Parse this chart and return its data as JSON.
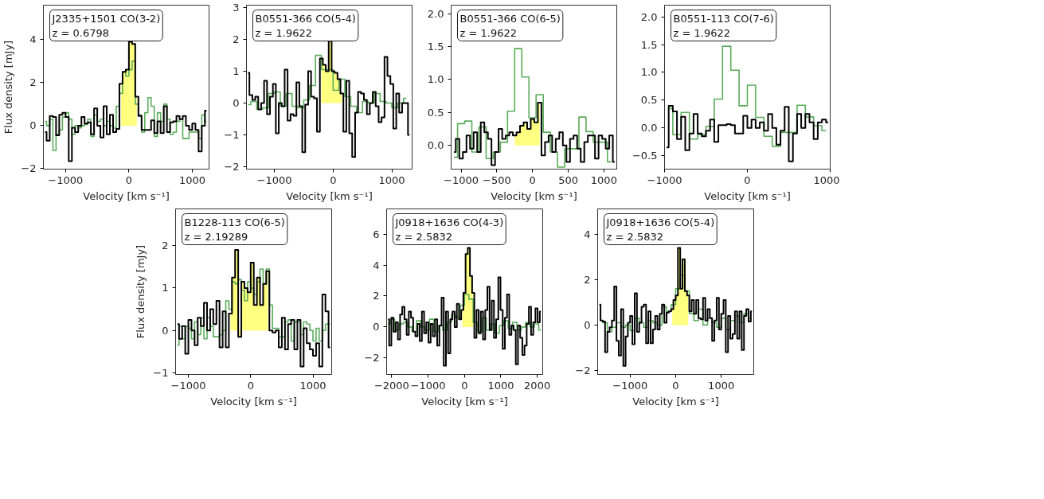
{
  "chart_data": [
    {
      "type": "step",
      "annotations": [
        "J2335+1501 CO(3-2)",
        "z = 0.6798"
      ],
      "xlabel": "Velocity [km s⁻¹]",
      "ylabel": "Flux density [mJy]",
      "xlim": [
        -1350,
        1265
      ],
      "ylim": [
        -2.02,
        5.6
      ],
      "xticks": [
        {
          "value": -1000,
          "label": "−1000"
        },
        0,
        1000
      ],
      "yticks": [
        {
          "value": -2,
          "label": "−2"
        },
        0,
        2,
        4
      ],
      "series": [
        {
          "type": "area",
          "color": "#ffff80",
          "x": [
            -125,
            -75,
            -25,
            25,
            75,
            125
          ],
          "values": [
            1.95,
            2.5,
            2.6,
            3.9,
            3.8,
            1.35
          ]
        },
        {
          "color": "#5aac5a",
          "x": [
            -1325,
            -1275,
            -1225,
            -1175,
            -1125,
            -1075,
            -1025,
            -975,
            -925,
            -875,
            -825,
            -775,
            -725,
            -675,
            -625,
            -575,
            -525,
            -475,
            -425,
            -375,
            -325,
            -275,
            -225,
            -175,
            -125,
            -75,
            -25,
            25,
            75,
            125,
            175,
            225,
            275,
            325,
            375,
            425,
            475,
            525,
            575,
            625,
            675,
            725,
            775,
            825,
            875,
            925,
            975,
            1025,
            1075,
            1125,
            1175,
            1225
          ],
          "values": [
            0.2,
            0.0,
            0.3,
            -1.15,
            -0.4,
            -0.2,
            0.4,
            0.6,
            0.3,
            -0.4,
            0.0,
            -0.1,
            0.0,
            0.05,
            0.3,
            -0.5,
            0.5,
            0.2,
            0.3,
            0.0,
            0.2,
            0.0,
            -0.1,
            0.9,
            1.5,
            2.5,
            2.3,
            2.6,
            3.0,
            1.0,
            0.5,
            -0.3,
            0.6,
            1.3,
            0.9,
            -0.5,
            0.6,
            0.2,
            1.0,
            0.3,
            -0.4,
            -0.3,
            0.2,
            0.3,
            -0.6,
            -0.6,
            -0.3,
            -0.3,
            -0.3,
            -0.6,
            0.5,
            0.2
          ]
        },
        {
          "color": "#000000",
          "x": [
            -1325,
            -1275,
            -1225,
            -1175,
            -1125,
            -1075,
            -1025,
            -975,
            -925,
            -875,
            -825,
            -775,
            -725,
            -675,
            -625,
            -575,
            -525,
            -475,
            -425,
            -375,
            -325,
            -275,
            -225,
            -175,
            -125,
            -75,
            -25,
            25,
            75,
            125,
            175,
            225,
            275,
            325,
            375,
            425,
            475,
            525,
            575,
            625,
            675,
            725,
            775,
            825,
            875,
            925,
            975,
            1025,
            1075,
            1125,
            1175,
            1225
          ],
          "values": [
            -0.3,
            -0.7,
            0.45,
            0.4,
            -0.45,
            0.5,
            0.6,
            0.4,
            -1.65,
            -0.1,
            -0.3,
            0.0,
            0.4,
            0.1,
            0.15,
            -0.4,
            0.8,
            0.0,
            -0.55,
            0.9,
            -0.4,
            0.5,
            -0.3,
            -0.15,
            1.95,
            2.5,
            2.6,
            3.9,
            3.8,
            1.35,
            0.45,
            -0.2,
            -0.2,
            -0.2,
            0.25,
            -0.35,
            0.2,
            -0.35,
            0.9,
            -0.3,
            0.15,
            0.2,
            0.45,
            0.3,
            0.45,
            0.0,
            -0.2,
            0.1,
            -0.2,
            -1.2,
            0.0,
            0.7
          ]
        }
      ]
    },
    {
      "type": "step",
      "annotations": [
        "B0551-366 CO(5-4)",
        "z = 1.9622"
      ],
      "xlabel": "Velocity [km s⁻¹]",
      "xlim": [
        -1475,
        1345
      ],
      "ylim": [
        -2.08,
        3.08
      ],
      "xticks": [
        {
          "value": -1000,
          "label": "−1000"
        },
        0,
        1000
      ],
      "yticks": [
        {
          "value": -2,
          "label": "−2"
        },
        {
          "value": -1,
          "label": "−1"
        },
        0,
        1,
        2,
        3
      ],
      "series": [
        {
          "type": "area",
          "color": "#ffff80",
          "x": [
            -200,
            -150,
            -100,
            -50,
            0,
            50,
            100,
            150
          ],
          "values": [
            1.4,
            1.2,
            1.0,
            1.95,
            1.0,
            0.95,
            0.75,
            0.3
          ]
        },
        {
          "color": "#5aac5a",
          "x": [
            -1450,
            -1350,
            -1250,
            -1150,
            -1050,
            -950,
            -850,
            -750,
            -650,
            -550,
            -450,
            -350,
            -250,
            -150,
            -50,
            50,
            150,
            250,
            350,
            450,
            550,
            650,
            750,
            850,
            950,
            1050,
            1150,
            1250
          ],
          "values": [
            -0.05,
            0.05,
            -0.2,
            -0.15,
            0.3,
            0.35,
            -0.1,
            0.3,
            -0.1,
            -0.15,
            0.1,
            0.55,
            1.5,
            1.05,
            1.05,
            0.4,
            0.75,
            0.2,
            -0.1,
            -0.3,
            0.05,
            0.0,
            0.3,
            0.05,
            0.0,
            -0.15,
            0.0,
            0.15
          ]
        },
        {
          "color": "#000000",
          "x": [
            -1450,
            -1400,
            -1350,
            -1300,
            -1250,
            -1200,
            -1150,
            -1100,
            -1050,
            -1000,
            -950,
            -900,
            -850,
            -800,
            -750,
            -700,
            -650,
            -600,
            -550,
            -500,
            -450,
            -400,
            -350,
            -300,
            -250,
            -200,
            -150,
            -100,
            -50,
            0,
            50,
            100,
            150,
            200,
            250,
            300,
            350,
            400,
            450,
            500,
            550,
            600,
            650,
            700,
            750,
            800,
            850,
            900,
            950,
            1000,
            1050,
            1100,
            1150,
            1200,
            1250,
            1300
          ],
          "values": [
            0.95,
            0.25,
            0.1,
            0.2,
            -0.2,
            0.0,
            0.7,
            -0.35,
            0.2,
            0.6,
            -0.95,
            0.0,
            -0.1,
            1.05,
            -0.55,
            -0.35,
            -0.4,
            0.65,
            -0.1,
            -1.55,
            -0.05,
            1.0,
            0.2,
            0.15,
            -0.9,
            1.4,
            1.2,
            1.0,
            1.95,
            1.0,
            0.95,
            0.75,
            0.3,
            -0.9,
            0.7,
            -0.95,
            -1.7,
            -0.3,
            0.35,
            0.3,
            0.1,
            -0.35,
            0.0,
            0.35,
            -0.1,
            -0.6,
            -0.45,
            1.45,
            0.85,
            0.6,
            -0.8,
            0.3,
            -0.3,
            0.0,
            0.0,
            -1.0
          ]
        }
      ]
    },
    {
      "type": "step",
      "annotations": [
        "B0551-366 CO(6-5)",
        "z = 1.9622"
      ],
      "xlabel": "Velocity [km s⁻¹]",
      "xlim": [
        -1140,
        1180
      ],
      "ylim": [
        -0.36,
        2.13
      ],
      "xticks": [
        {
          "value": -1000,
          "label": "−1000"
        },
        {
          "value": -500,
          "label": "−500"
        },
        0,
        500,
        1000
      ],
      "yticks": [
        {
          "value": 0,
          "label": "0.0"
        },
        0.5,
        {
          "value": 1,
          "label": "1.0"
        },
        1.5,
        {
          "value": 2,
          "label": "2.0"
        }
      ],
      "series": [
        {
          "type": "area",
          "color": "#ffff80",
          "x": [
            -250,
            -200,
            -150,
            -100,
            -50,
            0,
            50,
            100
          ],
          "values": [
            0.15,
            0.2,
            0.3,
            0.35,
            0.25,
            0.4,
            0.35,
            0.65
          ]
        },
        {
          "color": "#5aac5a",
          "x": [
            -1100,
            -1000,
            -900,
            -800,
            -700,
            -600,
            -500,
            -400,
            -300,
            -200,
            -100,
            0,
            100,
            200,
            300,
            400,
            500,
            600,
            700,
            800,
            900,
            1000,
            1100
          ],
          "values": [
            -0.18,
            0.33,
            0.37,
            -0.1,
            0.28,
            -0.2,
            -0.1,
            0.05,
            0.52,
            1.47,
            1.04,
            0.42,
            0.77,
            0.2,
            -0.1,
            -0.33,
            -0.05,
            -0.05,
            0.43,
            0.21,
            0.05,
            0.05,
            -0.25
          ]
        },
        {
          "color": "#000000",
          "x": [
            -1100,
            -1050,
            -1000,
            -950,
            -900,
            -850,
            -800,
            -750,
            -700,
            -650,
            -600,
            -550,
            -500,
            -450,
            -400,
            -350,
            -300,
            -250,
            -200,
            -150,
            -100,
            -50,
            0,
            50,
            100,
            150,
            200,
            250,
            300,
            350,
            400,
            450,
            500,
            550,
            600,
            650,
            700,
            750,
            800,
            850,
            900,
            950,
            1000,
            1050,
            1100,
            1150
          ],
          "values": [
            -0.1,
            0.1,
            -0.2,
            -0.1,
            0.15,
            -0.05,
            0.2,
            -0.1,
            0.35,
            0.2,
            0.1,
            -0.3,
            -0.1,
            0.25,
            0.1,
            0.15,
            0.2,
            0.15,
            0.2,
            0.3,
            0.35,
            0.25,
            0.4,
            0.35,
            0.65,
            -0.15,
            0.05,
            0.15,
            -0.1,
            0.1,
            0.2,
            0.0,
            -0.25,
            0.1,
            0.15,
            -0.05,
            -0.25,
            0.05,
            0.15,
            0.15,
            -0.2,
            0.15,
            0.1,
            -0.05,
            0.15,
            -0.25
          ]
        }
      ]
    },
    {
      "type": "step",
      "annotations": [
        "B0551-113 CO(7-6)",
        "z = 1.9622"
      ],
      "xlabel": "Velocity [km s⁻¹]",
      "xlim": [
        -1000,
        1000
      ],
      "ylim": [
        -0.74,
        2.21
      ],
      "xticks": [
        {
          "value": -1000,
          "label": "−1000"
        },
        0,
        1000
      ],
      "yticks": [
        {
          "value": -0.5,
          "label": "−0.5"
        },
        {
          "value": 0,
          "label": "0.0"
        },
        0.5,
        {
          "value": 1,
          "label": "1.0"
        },
        1.5,
        {
          "value": 2,
          "label": "2.0"
        }
      ],
      "series": [
        {
          "color": "#5aac5a",
          "x": [
            -950,
            -850,
            -750,
            -650,
            -550,
            -450,
            -350,
            -250,
            -150,
            -50,
            50,
            150,
            250,
            350,
            450,
            550,
            650,
            750,
            850,
            950
          ],
          "values": [
            0.35,
            -0.12,
            0.28,
            -0.2,
            -0.12,
            0.03,
            0.52,
            1.47,
            1.04,
            0.4,
            0.77,
            0.19,
            -0.15,
            -0.33,
            -0.08,
            -0.08,
            0.41,
            0.2,
            0.04,
            -0.05
          ]
        },
        {
          "color": "#000000",
          "x": [
            -975,
            -925,
            -875,
            -825,
            -775,
            -725,
            -675,
            -625,
            -575,
            -525,
            -475,
            -425,
            -375,
            -325,
            -275,
            -225,
            -175,
            -125,
            -75,
            -25,
            25,
            75,
            125,
            175,
            225,
            275,
            325,
            375,
            425,
            475,
            525,
            575,
            625,
            675,
            725,
            775,
            825,
            875,
            925,
            975
          ],
          "values": [
            -0.35,
            0.4,
            0.3,
            -0.2,
            0.2,
            -0.4,
            -0.1,
            0.25,
            -0.1,
            -0.15,
            -0.05,
            0.15,
            -0.25,
            0.05,
            0.05,
            0.07,
            0.05,
            -0.1,
            -0.1,
            0.22,
            0.0,
            0.15,
            0.0,
            0.1,
            -0.05,
            0.25,
            0.0,
            -0.3,
            -0.05,
            0.38,
            -0.6,
            -0.1,
            0.25,
            0.0,
            0.25,
            0.1,
            -0.2,
            0.1,
            0.15,
            0.1
          ]
        }
      ]
    },
    {
      "type": "step",
      "annotations": [
        "B1228-113 CO(6-5)",
        "z = 2.19289"
      ],
      "xlabel": "Velocity [km s⁻¹]",
      "ylabel": "Flux density [mJy]",
      "xlim": [
        -1205,
        1300
      ],
      "ylim": [
        -1.04,
        2.87
      ],
      "xticks": [
        {
          "value": -1000,
          "label": "−1000"
        },
        0,
        1000
      ],
      "yticks": [
        {
          "value": -1,
          "label": "−1"
        },
        0,
        1,
        2
      ],
      "series": [
        {
          "type": "area",
          "color": "#ffff80",
          "x": [
            -325,
            -275,
            -225,
            -175,
            -125,
            -75,
            -25,
            25,
            75,
            125,
            175,
            225,
            275
          ],
          "values": [
            0.4,
            1.25,
            1.9,
            -0.15,
            1.15,
            1.0,
            0.9,
            1.6,
            0.6,
            1.25,
            0.6,
            1.1,
            1.4
          ]
        },
        {
          "color": "#5aac5a",
          "x": [
            -1175,
            -1125,
            -1075,
            -1025,
            -975,
            -925,
            -875,
            -825,
            -775,
            -725,
            -675,
            -625,
            -575,
            -525,
            -475,
            -425,
            -375,
            -325,
            -275,
            -225,
            -175,
            -125,
            -75,
            -25,
            25,
            75,
            125,
            175,
            225,
            275,
            325,
            375,
            425,
            475,
            525,
            575,
            625,
            675,
            725,
            775,
            825,
            875,
            925,
            975,
            1025,
            1075,
            1125,
            1175,
            1225,
            1275
          ],
          "values": [
            -0.35,
            0.1,
            -0.2,
            0.1,
            0.05,
            -0.2,
            0.2,
            -0.1,
            0.3,
            -0.2,
            0.3,
            0.1,
            -0.15,
            -0.15,
            -0.1,
            0.0,
            0.7,
            0.5,
            1.15,
            1.1,
            1.2,
            0.95,
            0.7,
            1.15,
            1.0,
            0.85,
            1.15,
            1.45,
            1.1,
            1.45,
            0.6,
            0.05,
            0.05,
            -0.15,
            -0.15,
            0.2,
            0.25,
            -0.25,
            0.2,
            0.2,
            -0.1,
            0.2,
            0.15,
            0.0,
            -0.25,
            0.05,
            -0.25,
            0.0,
            0.15,
            0.15
          ]
        },
        {
          "color": "#000000",
          "x": [
            -1175,
            -1125,
            -1075,
            -1025,
            -975,
            -925,
            -875,
            -825,
            -775,
            -725,
            -675,
            -625,
            -575,
            -525,
            -475,
            -425,
            -375,
            -325,
            -275,
            -225,
            -175,
            -125,
            -75,
            -25,
            25,
            75,
            125,
            175,
            225,
            275,
            325,
            375,
            425,
            475,
            525,
            575,
            625,
            675,
            725,
            775,
            825,
            875,
            925,
            975,
            1025,
            1075,
            1125,
            1175,
            1225,
            1275
          ],
          "values": [
            0.15,
            -0.2,
            0.1,
            -0.55,
            0.25,
            0.0,
            -0.35,
            0.3,
            0.1,
            0.65,
            0.0,
            0.5,
            0.15,
            0.7,
            -0.4,
            0.45,
            -0.4,
            0.4,
            1.25,
            1.9,
            -0.15,
            1.15,
            1.0,
            0.9,
            1.6,
            0.6,
            1.25,
            0.6,
            1.1,
            1.4,
            0.0,
            -0.05,
            0.0,
            -0.4,
            0.3,
            -0.45,
            0.15,
            0.25,
            -0.45,
            0.25,
            -0.85,
            0.05,
            -0.3,
            -0.45,
            -0.6,
            -0.3,
            -0.85,
            0.85,
            0.45,
            -0.4
          ]
        }
      ]
    },
    {
      "type": "step",
      "annotations": [
        "J0918+1636 CO(4-3)",
        "z = 2.5832"
      ],
      "xlabel": "Velocity [km s⁻¹]",
      "xlim": [
        -2140,
        2150
      ],
      "ylim": [
        -3.06,
        7.62
      ],
      "xticks": [
        {
          "value": -2000,
          "label": "−2000"
        },
        {
          "value": -1000,
          "label": "−1000"
        },
        0,
        1000,
        2000
      ],
      "yticks": [
        {
          "value": -2,
          "label": "−2"
        },
        0,
        2,
        4,
        6
      ],
      "series": [
        {
          "type": "area",
          "color": "#ffff80",
          "x": [
            -60,
            0,
            60,
            120,
            180,
            240
          ],
          "values": [
            1.1,
            2.2,
            4.7,
            5.1,
            3.3,
            2.2
          ]
        },
        {
          "color": "#5aac5a",
          "x": [
            -2100,
            -1980,
            -1860,
            -1740,
            -1620,
            -1500,
            -1380,
            -1260,
            -1140,
            -1020,
            -900,
            -780,
            -660,
            -540,
            -420,
            -300,
            -180,
            -60,
            60,
            180,
            300,
            420,
            540,
            660,
            780,
            900,
            1020,
            1140,
            1260,
            1380,
            1500,
            1620,
            1740,
            1860,
            1980,
            2100
          ],
          "values": [
            0.2,
            0.5,
            -0.2,
            0.2,
            0.3,
            0.0,
            -0.3,
            0.4,
            0.0,
            -0.2,
            0.5,
            -0.3,
            0.1,
            -0.2,
            0.3,
            0.8,
            0.6,
            1.4,
            2.1,
            1.8,
            0.3,
            -0.3,
            0.6,
            -0.2,
            0.2,
            -0.4,
            0.1,
            0.4,
            -0.1,
            0.3,
            -0.2,
            0.0,
            0.3,
            0.0,
            0.2,
            -0.2
          ]
        },
        {
          "color": "#000000",
          "x": [
            -2100,
            -2040,
            -1980,
            -1920,
            -1860,
            -1800,
            -1740,
            -1680,
            -1620,
            -1560,
            -1500,
            -1440,
            -1380,
            -1320,
            -1260,
            -1200,
            -1140,
            -1080,
            -1020,
            -960,
            -900,
            -840,
            -780,
            -720,
            -660,
            -600,
            -540,
            -480,
            -420,
            -360,
            -300,
            -240,
            -180,
            -120,
            -60,
            0,
            60,
            120,
            180,
            240,
            300,
            360,
            420,
            480,
            540,
            600,
            660,
            720,
            780,
            840,
            900,
            960,
            1020,
            1080,
            1140,
            1200,
            1260,
            1320,
            1380,
            1440,
            1500,
            1560,
            1620,
            1680,
            1740,
            1800,
            1860,
            1920,
            1980,
            2040,
            2100
          ],
          "values": [
            0.5,
            -1.2,
            0.6,
            -0.3,
            0.3,
            -0.8,
            0.8,
            1.3,
            0.5,
            -0.5,
            1.0,
            0.6,
            -0.3,
            -0.6,
            0.2,
            -0.9,
            1.0,
            -0.4,
            0.3,
            -1.0,
            0.2,
            -0.6,
            0.5,
            -1.2,
            0.1,
            1.9,
            -2.5,
            1.0,
            -1.7,
            0.5,
            1.0,
            0.0,
            1.5,
            0.5,
            1.1,
            2.2,
            4.7,
            5.1,
            3.3,
            2.2,
            -0.7,
            1.1,
            -0.4,
            1.0,
            -0.8,
            1.1,
            2.6,
            -0.2,
            1.7,
            -0.7,
            0.5,
            3.2,
            1.1,
            -1.4,
            0.6,
            2.1,
            -0.5,
            0.1,
            -0.2,
            -2.4,
            0.1,
            -0.7,
            -1.8,
            -1.2,
            0.2,
            1.3,
            -0.5,
            0.3,
            1.2,
            0.3,
            1.0
          ]
        }
      ]
    },
    {
      "type": "step",
      "annotations": [
        "J0918+1636 CO(5-4)",
        "z = 2.5832"
      ],
      "xlabel": "Velocity [km s⁻¹]",
      "xlim": [
        -1713,
        1714
      ],
      "ylim": [
        -2.18,
        5.12
      ],
      "xticks": [
        {
          "value": -1000,
          "label": "−1000"
        },
        0,
        1000
      ],
      "yticks": [
        {
          "value": -2,
          "label": "−2"
        },
        0,
        2,
        4
      ],
      "series": [
        {
          "type": "area",
          "color": "#ffff80",
          "x": [
            -75,
            -25,
            25,
            75,
            125,
            175,
            225,
            275
          ],
          "values": [
            0.7,
            1.1,
            1.3,
            3.4,
            1.6,
            2.9,
            1.5,
            1.3
          ]
        },
        {
          "color": "#5aac5a",
          "x": [
            -1650,
            -1550,
            -1450,
            -1350,
            -1250,
            -1150,
            -1050,
            -950,
            -850,
            -750,
            -650,
            -550,
            -450,
            -350,
            -250,
            -150,
            -50,
            50,
            150,
            250,
            350,
            450,
            550,
            650,
            750,
            850,
            950,
            1050,
            1150,
            1250,
            1350,
            1450,
            1550,
            1650
          ],
          "values": [
            0.2,
            0.1,
            -0.3,
            -0.1,
            0.1,
            -0.1,
            0.0,
            -0.25,
            0.3,
            0.1,
            -0.1,
            0.2,
            0.1,
            0.0,
            0.8,
            0.6,
            0.9,
            1.6,
            2.2,
            1.5,
            0.5,
            0.2,
            0.7,
            0.0,
            0.3,
            0.1,
            -0.1,
            0.3,
            -0.2,
            0.2,
            0.4,
            0.1,
            0.5,
            0.3
          ]
        },
        {
          "color": "#000000",
          "x": [
            -1675,
            -1625,
            -1575,
            -1525,
            -1475,
            -1425,
            -1375,
            -1325,
            -1275,
            -1225,
            -1175,
            -1125,
            -1075,
            -1025,
            -975,
            -925,
            -875,
            -825,
            -775,
            -725,
            -675,
            -625,
            -575,
            -525,
            -475,
            -425,
            -375,
            -325,
            -275,
            -225,
            -175,
            -125,
            -75,
            -25,
            25,
            75,
            125,
            175,
            225,
            275,
            325,
            375,
            425,
            475,
            525,
            575,
            625,
            675,
            725,
            775,
            825,
            875,
            925,
            975,
            1025,
            1075,
            1125,
            1175,
            1225,
            1275,
            1325,
            1375,
            1425,
            1475,
            1525,
            1575,
            1625,
            1675
          ],
          "values": [
            0.9,
            0.2,
            0.15,
            -1.2,
            -0.3,
            -0.1,
            0.2,
            1.7,
            -0.7,
            -1.35,
            0.7,
            -1.8,
            -0.5,
            0.1,
            0.4,
            -0.85,
            1.4,
            -0.3,
            0.1,
            0.8,
            0.9,
            -0.8,
            0.6,
            -0.8,
            -0.2,
            0.4,
            -0.2,
            0.5,
            0.9,
            0.1,
            0.55,
            0.6,
            0.7,
            1.1,
            1.3,
            3.4,
            1.6,
            2.9,
            1.5,
            1.3,
            0.6,
            1.1,
            0.5,
            1.1,
            0.3,
            0.25,
            1.2,
            0.2,
            0.7,
            0.3,
            -0.7,
            0.2,
            1.2,
            -0.2,
            0.5,
            1.1,
            -1.2,
            0.4,
            -0.6,
            -0.4,
            0.6,
            -0.6,
            0.6,
            -1.1,
            0.4,
            0.7,
            0.15,
            0.6
          ]
        }
      ]
    }
  ]
}
